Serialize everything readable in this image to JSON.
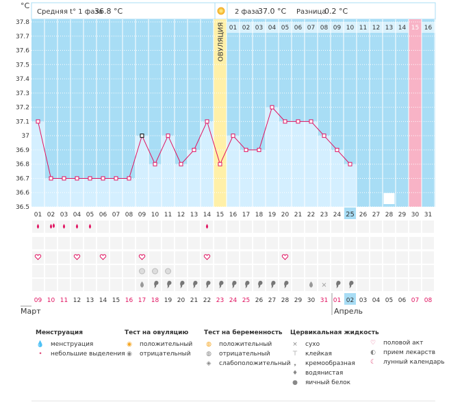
{
  "header": {
    "unit": "°C",
    "phase1_label": "Средняя t° 1 фаза",
    "phase1_value": "36.8 °C",
    "phase2_label": "2 фаза",
    "phase2_value": "37.0 °C",
    "diff_label": "Разница",
    "diff_value": "0.2 °C"
  },
  "ovulation_label": "ОВУЛЯЦИЯ",
  "phase2_days": [
    "01",
    "02",
    "03",
    "04",
    "05",
    "06",
    "07",
    "08",
    "09",
    "10",
    "11",
    "12",
    "13",
    "14",
    "15",
    "16"
  ],
  "cycle_days": [
    "01",
    "02",
    "03",
    "04",
    "05",
    "06",
    "07",
    "08",
    "09",
    "10",
    "11",
    "12",
    "13",
    "14",
    "15",
    "16",
    "17",
    "18",
    "19",
    "20",
    "21",
    "22",
    "23",
    "24",
    "25",
    "26",
    "27",
    "28",
    "29",
    "30",
    "31"
  ],
  "dates": [
    "09",
    "10",
    "11",
    "12",
    "13",
    "14",
    "15",
    "16",
    "17",
    "18",
    "19",
    "20",
    "21",
    "22",
    "23",
    "24",
    "25",
    "26",
    "27",
    "28",
    "29",
    "30",
    "31",
    "01",
    "02",
    "03",
    "04",
    "05",
    "06",
    "07",
    "08"
  ],
  "months": {
    "march": "Март",
    "april": "Апрель"
  },
  "chart_data": {
    "type": "line",
    "title": "",
    "ylabel": "°C",
    "ylim": [
      36.5,
      37.8
    ],
    "yticks": [
      36.5,
      36.6,
      36.7,
      36.8,
      36.9,
      37,
      37.1,
      37.2,
      37.3,
      37.4,
      37.5,
      37.6,
      37.7,
      37.8
    ],
    "ytick_labels": [
      "36.5",
      "36.6",
      "36.7",
      "36.8",
      "36.9",
      "37",
      "37.1",
      "37.2",
      "37.3",
      "37.4",
      "37.5",
      "37.6",
      "37.7",
      "37.8"
    ],
    "x": [
      1,
      2,
      3,
      4,
      5,
      6,
      7,
      8,
      9,
      10,
      11,
      12,
      13,
      14,
      15,
      16,
      17,
      18,
      19,
      20,
      21,
      22,
      23,
      24,
      25
    ],
    "values": [
      37.1,
      36.7,
      36.7,
      36.7,
      36.7,
      36.7,
      36.7,
      36.7,
      37.0,
      36.8,
      37.0,
      36.8,
      36.9,
      37.1,
      36.8,
      37.0,
      36.9,
      36.9,
      37.2,
      37.1,
      37.1,
      37.1,
      37.0,
      36.9,
      36.8
    ],
    "ovulation_day": 15,
    "current_day": 25,
    "highlight_day": 30,
    "grid": true
  },
  "symbols": {
    "menstruation": [
      1,
      2,
      3,
      4,
      5,
      14
    ],
    "menstruation_heavy": [
      2
    ],
    "intercourse": [
      1,
      4,
      6,
      9,
      14,
      20
    ],
    "ovulation_test": [
      9,
      10,
      11
    ],
    "fluid": [
      {
        "day": 9,
        "type": "watery"
      },
      {
        "day": 10,
        "type": "creamy"
      },
      {
        "day": 11,
        "type": "creamy"
      },
      {
        "day": 12,
        "type": "creamy"
      },
      {
        "day": 13,
        "type": "creamy"
      },
      {
        "day": 14,
        "type": "creamy"
      },
      {
        "day": 15,
        "type": "creamy"
      },
      {
        "day": 16,
        "type": "creamy"
      },
      {
        "day": 17,
        "type": "creamy"
      },
      {
        "day": 18,
        "type": "creamy"
      },
      {
        "day": 19,
        "type": "creamy"
      },
      {
        "day": 20,
        "type": "creamy"
      },
      {
        "day": 22,
        "type": "eggwhite"
      },
      {
        "day": 23,
        "type": "dry"
      },
      {
        "day": 24,
        "type": "creamy"
      },
      {
        "day": 25,
        "type": "creamy"
      }
    ],
    "moon_day": 28
  },
  "legend": {
    "menstruation": {
      "title": "Менструация",
      "items": [
        "менструация",
        "небольшие выделения"
      ]
    },
    "ovulation_test": {
      "title": "Тест на овуляцию",
      "items": [
        "положительный",
        "отрицательный"
      ]
    },
    "pregnancy_test": {
      "title": "Тест на беременность",
      "items": [
        "положительный",
        "отрицательный",
        "слабоположительный"
      ]
    },
    "cervical": {
      "title": "Цервикальная жидкость",
      "items": [
        "сухо",
        "клейкая",
        "кремообразная",
        "водянистая",
        "яичный белок"
      ]
    },
    "other": {
      "items": [
        "половой акт",
        "прием лекарств",
        "лунный календарь"
      ]
    }
  },
  "colors": {
    "chart_bg": "#a8ddf5",
    "column": "#d4efff",
    "ovulation": "#fff0a8",
    "highlight": "#f8b3c6",
    "line": "#e0115f",
    "current_day": "#a8ddf5",
    "red_date": "#e0115f"
  }
}
